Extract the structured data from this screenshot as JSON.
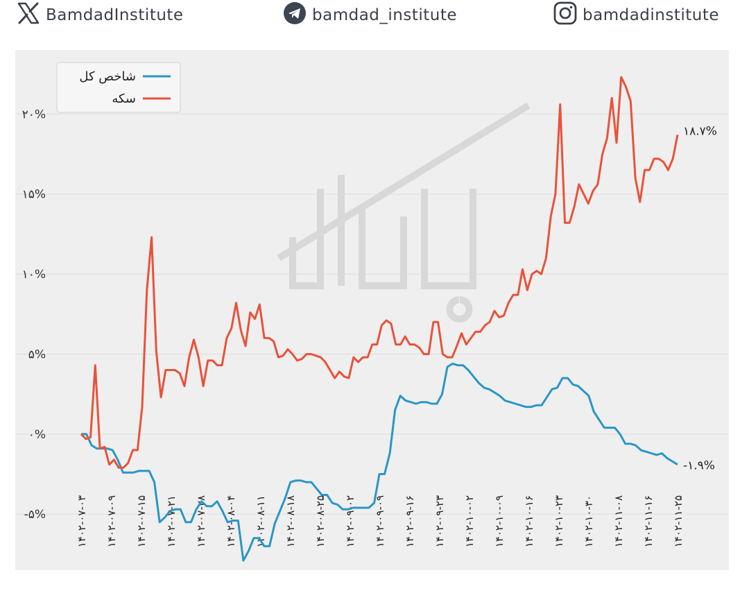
{
  "header": {
    "twitter": {
      "handle": "BamdadInstitute",
      "icon": "x-logo-icon"
    },
    "telegram": {
      "handle": "bamdad_institute",
      "icon": "telegram-icon"
    },
    "instagram": {
      "handle": "bamdadinstitute",
      "icon": "instagram-icon"
    }
  },
  "colors": {
    "index": "#2a96c5",
    "coin": "#e8523a",
    "panel": "#efefef",
    "grid": "#dddddd"
  },
  "chart_data": {
    "type": "line",
    "title": "",
    "xlabel": "",
    "ylabel": "",
    "ylim": [
      -8.5,
      24
    ],
    "grid": true,
    "legend_position": "top-left",
    "y_ticks": [
      {
        "value": -5,
        "label": "-۵%"
      },
      {
        "value": 0,
        "label": "۰%"
      },
      {
        "value": 5,
        "label": "۵%"
      },
      {
        "value": 10,
        "label": "۱۰%"
      },
      {
        "value": 15,
        "label": "۱۵%"
      },
      {
        "value": 20,
        "label": "۲۰%"
      }
    ],
    "x_tick_labels": [
      "۱۴۰۲-۰۷-۰۳",
      "۱۴۰۲-۰۷-۰۹",
      "۱۴۰۲-۰۷-۱۵",
      "۱۴۰۲-۰۷-۲۱",
      "۱۴۰۲-۰۷-۲۸",
      "۱۴۰۲-۰۸-۰۴",
      "۱۴۰۲-۰۸-۱۱",
      "۱۴۰۲-۰۸-۱۸",
      "۱۴۰۲-۰۸-۲۵",
      "۱۴۰۲-۰۹-۰۲",
      "۱۴۰۲-۰۹-۰۹",
      "۱۴۰۲-۰۹-۱۶",
      "۱۴۰۲-۰۹-۲۳",
      "۱۴۰۲-۱۰-۰۲",
      "۱۴۰۲-۱۰-۰۹",
      "۱۴۰۲-۱۰-۱۶",
      "۱۴۰۲-۱۰-۲۳",
      "۱۴۰۲-۱۰-۳۰",
      "۱۴۰۲-۱۱-۰۸",
      "۱۴۰۲-۱۱-۱۶",
      "۱۴۰۲-۱۱-۲۵"
    ],
    "series": [
      {
        "name": "شاخص کل",
        "color": "#2a96c5",
        "end_label": "-۱.۹%",
        "values": [
          0,
          0,
          -0.7,
          -0.9,
          -0.9,
          -0.9,
          -1.0,
          -1.6,
          -2.4,
          -2.4,
          -2.4,
          -2.3,
          -2.3,
          -2.3,
          -3.0,
          -5.5,
          -5.2,
          -4.8,
          -4.7,
          -4.7,
          -5.5,
          -5.5,
          -4.7,
          -4.2,
          -4.5,
          -4.5,
          -4.2,
          -4.8,
          -5.5,
          -5.4,
          -5.4,
          -7.9,
          -7.3,
          -6.5,
          -6.5,
          -7.0,
          -7.0,
          -5.6,
          -4.8,
          -4.0,
          -3.0,
          -2.9,
          -2.9,
          -3.0,
          -3.0,
          -3.4,
          -3.8,
          -3.8,
          -4.3,
          -4.4,
          -4.7,
          -4.7,
          -4.6,
          -4.6,
          -4.6,
          -4.6,
          -4.3,
          -2.5,
          -2.5,
          -1.2,
          1.5,
          2.4,
          2.1,
          2.0,
          1.9,
          2.0,
          2.0,
          1.9,
          1.9,
          2.5,
          4.2,
          4.4,
          4.3,
          4.3,
          4.0,
          3.6,
          3.2,
          2.9,
          2.8,
          2.6,
          2.4,
          2.1,
          2.0,
          1.9,
          1.8,
          1.7,
          1.7,
          1.8,
          1.8,
          2.3,
          2.8,
          2.9,
          3.5,
          3.5,
          3.1,
          3.0,
          2.7,
          2.4,
          1.4,
          0.9,
          0.4,
          0.4,
          0.4,
          0.0,
          -0.6,
          -0.6,
          -0.7,
          -1.0,
          -1.1,
          -1.2,
          -1.3,
          -1.2,
          -1.5,
          -1.7,
          -1.9
        ]
      },
      {
        "name": "سکه",
        "color": "#e8523a",
        "end_label": "۱۸.۷%",
        "values": [
          0,
          -0.3,
          -0.2,
          4.3,
          -0.9,
          -0.8,
          -1.9,
          -1.6,
          -2.1,
          -2.1,
          -1.8,
          -1.0,
          -1.0,
          1.7,
          9.0,
          12.3,
          5.2,
          2.3,
          4.0,
          4.0,
          4.0,
          3.8,
          3.0,
          4.8,
          5.9,
          4.8,
          3.0,
          4.6,
          4.6,
          4.3,
          4.3,
          6.0,
          6.6,
          8.2,
          6.5,
          5.5,
          7.6,
          7.2,
          8.1,
          6.0,
          6.0,
          5.8,
          4.8,
          4.9,
          5.3,
          5.0,
          4.6,
          4.7,
          5.0,
          5.0,
          4.9,
          4.8,
          4.5,
          4.0,
          3.5,
          3.9,
          3.6,
          3.5,
          4.8,
          4.5,
          4.8,
          4.8,
          5.6,
          5.6,
          6.8,
          7.1,
          6.9,
          5.6,
          5.6,
          6.1,
          5.6,
          5.6,
          5.4,
          5.0,
          5.0,
          7.0,
          7.0,
          5.0,
          4.8,
          4.8,
          5.5,
          6.3,
          5.6,
          6.0,
          6.4,
          6.4,
          6.8,
          7.0,
          7.7,
          7.3,
          7.4,
          8.2,
          8.7,
          8.7,
          10.3,
          9.0,
          10.0,
          10.2,
          10.0,
          11.0,
          13.6,
          15.0,
          20.6,
          13.2,
          13.2,
          14.2,
          15.6,
          15.0,
          14.4,
          15.2,
          15.6,
          17.5,
          18.5,
          21.0,
          18.2,
          22.3,
          21.7,
          20.8,
          16.0,
          14.5,
          16.5,
          16.5,
          17.2,
          17.2,
          17.0,
          16.5,
          17.2,
          18.7
        ]
      }
    ]
  }
}
